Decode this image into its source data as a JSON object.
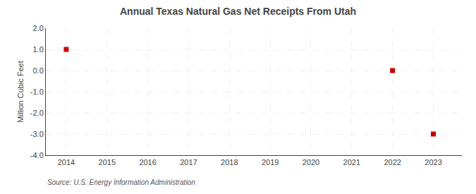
{
  "chart_data": {
    "type": "scatter",
    "title": "Annual Texas Natural Gas Net Receipts From Utah",
    "ylabel": "Million Cubic Feet",
    "annotations": [
      "Source: U.S. Energy Information Administration"
    ],
    "x": [
      2014,
      2022,
      2023
    ],
    "values": [
      1.0,
      0.0,
      -3.0
    ],
    "color": "#cc0000",
    "marker": "square",
    "xlim": [
      2013.5,
      2023.7
    ],
    "ylim": [
      -4.0,
      2.0
    ],
    "xticks": [
      2014,
      2015,
      2016,
      2017,
      2018,
      2019,
      2020,
      2021,
      2022,
      2023
    ],
    "yticks": [
      {
        "value": -4.0,
        "label": "-4.0"
      },
      {
        "value": -3.0,
        "label": "-3.0"
      },
      {
        "value": -2.0,
        "label": "-2.0"
      },
      {
        "value": -1.0,
        "label": "-1.0"
      },
      {
        "value": 0.0,
        "label": "0.0"
      },
      {
        "value": 1.0,
        "label": "1.0"
      },
      {
        "value": 2.0,
        "label": "2.0"
      }
    ],
    "grid": true
  }
}
